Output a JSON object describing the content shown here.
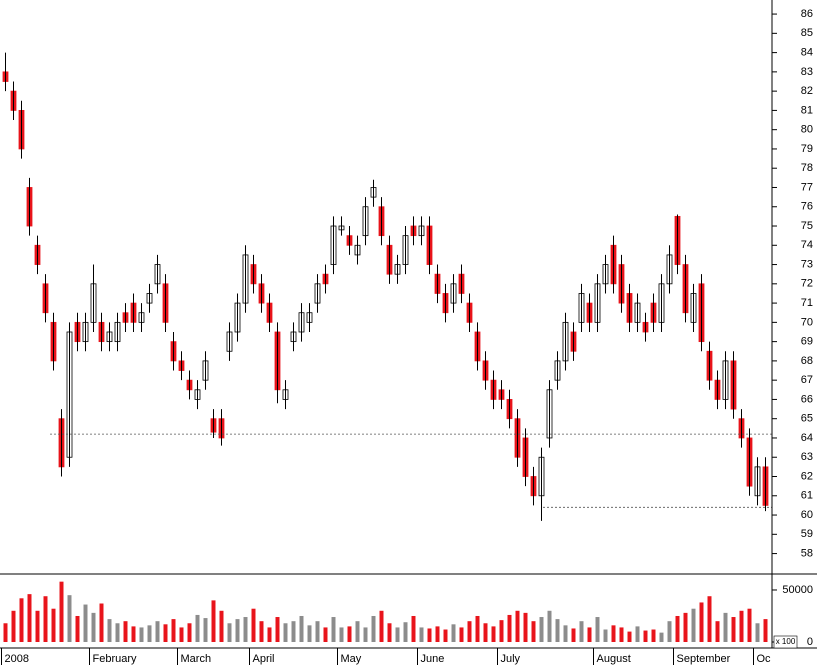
{
  "chart_data": {
    "type": "candlestick",
    "categories": [
      "2008",
      null,
      null,
      null,
      null,
      null,
      null,
      null,
      null,
      null,
      null,
      "February",
      null,
      null,
      null,
      null,
      null,
      null,
      null,
      null,
      null,
      null,
      "March",
      null,
      null,
      null,
      null,
      null,
      null,
      null,
      null,
      "April",
      null,
      null,
      null,
      null,
      null,
      null,
      null,
      null,
      null,
      null,
      "May",
      null,
      null,
      null,
      null,
      null,
      null,
      null,
      null,
      null,
      "June",
      null,
      null,
      null,
      null,
      null,
      null,
      null,
      null,
      null,
      "July",
      null,
      null,
      null,
      null,
      null,
      null,
      null,
      null,
      null,
      null,
      null,
      "August",
      null,
      null,
      null,
      null,
      null,
      null,
      null,
      null,
      null,
      "September",
      null,
      null,
      null,
      null,
      null,
      null,
      null,
      null,
      null,
      "Oc",
      null
    ],
    "open": [
      83,
      82,
      81,
      77,
      74,
      72,
      70,
      65,
      63,
      70,
      69,
      70,
      70,
      69,
      69,
      70.5,
      71,
      70,
      71,
      72,
      72,
      69,
      68,
      67,
      66,
      67,
      65,
      65,
      68.5,
      69.5,
      71,
      73,
      72,
      71,
      69.5,
      66,
      69,
      69.5,
      70,
      71,
      72.5,
      73,
      74.8,
      74.5,
      73.5,
      74.5,
      76.5,
      76,
      74,
      72.5,
      73,
      75,
      74.5,
      75,
      72.5,
      71.5,
      71,
      72.5,
      71,
      69.5,
      68,
      67,
      66.5,
      66,
      65,
      64,
      62,
      61,
      64,
      67,
      68,
      69.5,
      70,
      71,
      70,
      72,
      74,
      73,
      71.5,
      70,
      70,
      71,
      70,
      72,
      75.5,
      73,
      70,
      72,
      68.5,
      67,
      66,
      68,
      65,
      64,
      61,
      62.5
    ],
    "high": [
      84,
      82.5,
      81.5,
      77.5,
      74.5,
      72.5,
      70.5,
      65.5,
      70,
      70.5,
      70.5,
      73,
      70.5,
      70,
      70.5,
      71,
      71.5,
      71,
      72,
      73.5,
      72.5,
      69.5,
      68.5,
      67.5,
      67,
      68.5,
      65.5,
      65.5,
      70,
      71.5,
      74,
      73.5,
      72.5,
      71.5,
      70,
      67,
      70,
      71,
      71,
      72.5,
      73,
      75.5,
      75.5,
      75,
      74.5,
      76.5,
      77.4,
      76.5,
      74.5,
      73.5,
      75,
      75.5,
      75.5,
      75.5,
      73,
      72,
      72.5,
      73,
      71.5,
      70,
      68.5,
      67.5,
      67,
      66.5,
      65.5,
      64.5,
      62.5,
      63.5,
      67,
      68.5,
      70.5,
      70,
      72,
      71.5,
      72.5,
      73.5,
      74.5,
      73.5,
      72,
      71.5,
      70.5,
      71.5,
      72.5,
      74,
      75.6,
      73.5,
      72,
      72.5,
      69,
      67.5,
      68.5,
      68.5,
      65.5,
      64.5,
      63,
      63
    ],
    "low": [
      82,
      80.5,
      78.5,
      74.5,
      72.5,
      70,
      67.5,
      62,
      62.5,
      68.5,
      68.5,
      69.5,
      68.5,
      68.5,
      68.5,
      69.5,
      69.5,
      69.5,
      70.5,
      71.5,
      69.5,
      67.5,
      67,
      66,
      65.5,
      66.5,
      64,
      63.6,
      68,
      69,
      70.5,
      71.5,
      70.5,
      69.5,
      65.8,
      65.5,
      68.5,
      69,
      69.5,
      70.5,
      71.5,
      72.5,
      74.5,
      73.5,
      73,
      74,
      76,
      74,
      72,
      72,
      72.5,
      74,
      74,
      72.5,
      71,
      70,
      70.5,
      71,
      69.5,
      67.5,
      66.5,
      65.5,
      65.5,
      64.5,
      62.5,
      61.5,
      60.5,
      59.7,
      63.5,
      66.5,
      67.5,
      68,
      69.5,
      69.5,
      69.5,
      71.5,
      71.5,
      70.5,
      69.5,
      69.5,
      69,
      69.5,
      69.5,
      71.5,
      72.5,
      70,
      69.5,
      68.5,
      66.5,
      65.5,
      65.5,
      65,
      63.5,
      61,
      60.5,
      60.2
    ],
    "close": [
      82.5,
      81,
      79,
      75,
      73,
      70.5,
      68,
      62.5,
      69.5,
      69,
      70,
      72,
      69,
      69.5,
      70,
      70,
      70,
      70.5,
      71.5,
      73,
      70,
      68,
      67.5,
      66.5,
      66.5,
      68,
      64.3,
      64,
      69.5,
      71,
      73.5,
      72,
      71,
      70,
      66.5,
      66.5,
      69.5,
      70.5,
      70.5,
      72,
      72,
      75,
      75,
      74,
      74,
      76,
      77,
      74.5,
      72.5,
      73,
      74.5,
      74.5,
      75,
      73,
      71.5,
      70.5,
      72,
      71.5,
      70,
      68,
      67,
      66,
      66,
      65,
      63,
      62,
      61,
      63,
      66.5,
      68,
      70,
      68.5,
      71.5,
      70,
      72,
      73,
      72,
      71,
      70,
      71,
      69.5,
      70,
      72,
      73.5,
      73,
      70.5,
      71.5,
      69,
      67,
      66,
      68,
      65.5,
      64,
      61.5,
      62.5,
      60.5
    ],
    "up_color": "#ffffff",
    "down_color": "#e8141b",
    "ylim": [
      56.94,
      86.73
    ],
    "yticks": [
      58,
      59,
      60,
      61,
      62,
      63,
      64,
      65,
      66,
      67,
      68,
      69,
      70,
      71,
      72,
      73,
      74,
      75,
      76,
      77,
      78,
      79,
      80,
      81,
      82,
      83,
      84,
      85,
      86
    ],
    "reference_lines": [
      64.2,
      60.4
    ],
    "volume": {
      "values": [
        18000,
        30000,
        42000,
        46000,
        30000,
        44000,
        32000,
        58000,
        45000,
        25000,
        36000,
        28000,
        37000,
        22000,
        18000,
        20000,
        15000,
        14000,
        16000,
        20000,
        17000,
        22000,
        14000,
        18000,
        26000,
        23000,
        40000,
        30000,
        18000,
        22000,
        24000,
        32000,
        20000,
        14000,
        24000,
        18000,
        20000,
        25000,
        16000,
        20000,
        14000,
        24000,
        14000,
        15000,
        20000,
        14000,
        25000,
        30000,
        18000,
        14000,
        19000,
        25000,
        14000,
        13000,
        15000,
        12000,
        17000,
        14000,
        20000,
        25000,
        18000,
        15000,
        21000,
        26000,
        30000,
        28000,
        20000,
        24000,
        30000,
        22000,
        16000,
        13000,
        20000,
        14000,
        24000,
        12000,
        16000,
        14000,
        10000,
        15000,
        11000,
        12000,
        9000,
        20000,
        25000,
        28000,
        32000,
        38000,
        44000,
        20000,
        28000,
        24000,
        30000,
        32000,
        18000,
        22000
      ],
      "up_color": "#8c8c8c",
      "down_color": "#e8141b",
      "ylim": [
        -5770,
        64400
      ],
      "yticks": [
        0,
        50000
      ],
      "unit": "x 100"
    }
  }
}
